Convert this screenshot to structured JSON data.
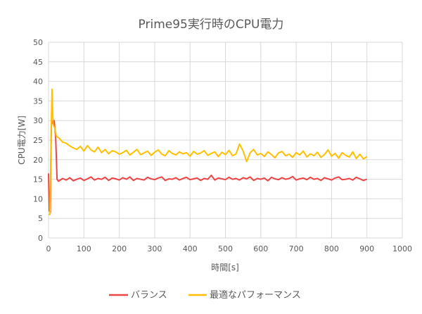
{
  "chart_data": {
    "type": "line",
    "title": "Prime95実行時のCPU電力",
    "xlabel": "時間[s]",
    "ylabel": "CPU電力[W]",
    "xlim": [
      0,
      1000
    ],
    "ylim": [
      0,
      50
    ],
    "xticks": [
      0,
      100,
      200,
      300,
      400,
      500,
      600,
      700,
      800,
      900,
      1000
    ],
    "yticks": [
      0,
      5,
      10,
      15,
      20,
      25,
      30,
      35,
      40,
      45,
      50
    ],
    "grid": true,
    "legend": "bottom",
    "series": [
      {
        "name": "バランス",
        "color": "#ee4444",
        "x": [
          0,
          2,
          5,
          8,
          12,
          16,
          20,
          24,
          28,
          30,
          40,
          50,
          60,
          70,
          80,
          90,
          100,
          110,
          120,
          130,
          140,
          150,
          160,
          170,
          180,
          190,
          200,
          210,
          220,
          230,
          240,
          250,
          260,
          270,
          280,
          290,
          300,
          310,
          320,
          330,
          340,
          350,
          360,
          370,
          380,
          390,
          400,
          410,
          420,
          430,
          440,
          450,
          460,
          470,
          480,
          490,
          500,
          510,
          520,
          530,
          540,
          550,
          560,
          570,
          580,
          590,
          600,
          610,
          620,
          630,
          640,
          650,
          660,
          670,
          680,
          690,
          700,
          710,
          720,
          730,
          740,
          750,
          760,
          770,
          780,
          790,
          800,
          810,
          820,
          830,
          840,
          850,
          860,
          870,
          880,
          890,
          900
        ],
        "y": [
          16.5,
          7,
          6.5,
          29,
          30,
          30,
          26,
          15,
          14.5,
          14.6,
          15.2,
          14.8,
          15.4,
          14.6,
          15.0,
          15.3,
          14.7,
          15.1,
          15.6,
          14.8,
          15.2,
          15.0,
          15.5,
          14.7,
          15.3,
          15.1,
          14.8,
          15.4,
          15.0,
          15.6,
          14.7,
          15.2,
          15.0,
          14.8,
          15.5,
          15.1,
          14.9,
          15.3,
          15.6,
          14.7,
          15.1,
          15.0,
          15.4,
          14.8,
          15.2,
          15.5,
          14.9,
          15.1,
          15.3,
          14.7,
          15.2,
          15.0,
          16.0,
          14.8,
          15.3,
          15.1,
          14.9,
          15.5,
          15.0,
          15.2,
          14.8,
          15.4,
          15.1,
          15.6,
          14.7,
          15.2,
          15.0,
          15.3,
          14.6,
          15.5,
          15.1,
          14.9,
          15.4,
          15.0,
          15.2,
          15.7,
          14.8,
          15.1,
          15.3,
          14.9,
          15.5,
          15.0,
          15.2,
          14.7,
          15.4,
          15.1,
          14.8,
          15.3,
          15.6,
          14.9,
          15.0,
          15.2,
          14.8,
          15.5,
          15.1,
          14.7,
          15.0
        ]
      },
      {
        "name": "最適なパフォーマンス",
        "color": "#ffc000",
        "x": [
          0,
          4,
          8,
          10,
          13,
          18,
          22,
          30,
          40,
          50,
          60,
          70,
          80,
          90,
          100,
          110,
          120,
          130,
          140,
          150,
          160,
          170,
          180,
          190,
          200,
          210,
          220,
          230,
          240,
          250,
          260,
          270,
          280,
          290,
          300,
          310,
          320,
          330,
          340,
          350,
          360,
          370,
          380,
          390,
          400,
          410,
          420,
          430,
          440,
          450,
          460,
          470,
          480,
          490,
          500,
          510,
          520,
          530,
          540,
          550,
          560,
          570,
          580,
          590,
          600,
          610,
          620,
          630,
          640,
          650,
          660,
          670,
          680,
          690,
          700,
          710,
          720,
          730,
          740,
          750,
          760,
          770,
          780,
          790,
          800,
          810,
          820,
          830,
          840,
          850,
          860,
          870,
          880,
          890,
          900
        ],
        "y": [
          6,
          6,
          30,
          38,
          29,
          28,
          26,
          25.5,
          24.5,
          24.2,
          23.5,
          23.0,
          22.6,
          23.4,
          22.2,
          23.6,
          22.5,
          22.0,
          23.2,
          21.8,
          22.6,
          21.5,
          22.3,
          22.0,
          21.4,
          21.8,
          22.4,
          21.2,
          21.9,
          22.6,
          21.3,
          21.7,
          22.2,
          21.1,
          21.9,
          22.5,
          21.4,
          21.0,
          22.3,
          21.6,
          21.2,
          22.0,
          21.5,
          21.8,
          20.9,
          22.1,
          21.4,
          21.7,
          22.3,
          21.1,
          21.6,
          22.0,
          20.8,
          21.9,
          21.3,
          22.4,
          21.0,
          21.5,
          24.0,
          22.2,
          19.5,
          21.8,
          22.6,
          21.2,
          21.6,
          20.8,
          22.0,
          21.3,
          20.5,
          21.7,
          22.1,
          21.0,
          21.4,
          20.6,
          21.8,
          21.2,
          22.2,
          20.7,
          21.5,
          21.0,
          21.9,
          20.6,
          21.3,
          22.5,
          20.9,
          21.6,
          20.4,
          21.8,
          21.1,
          20.7,
          22.0,
          20.3,
          21.4,
          20.2,
          20.8
        ]
      }
    ]
  }
}
